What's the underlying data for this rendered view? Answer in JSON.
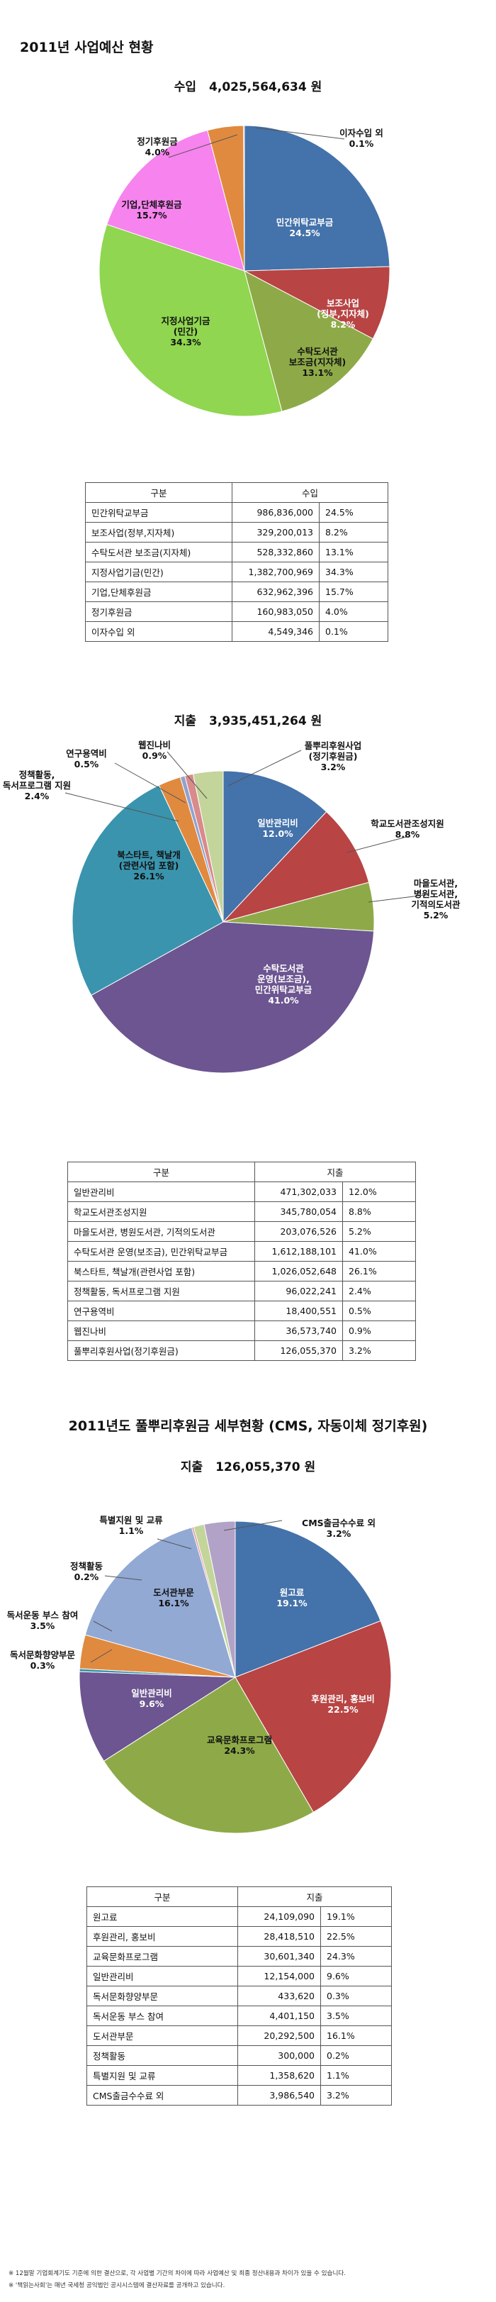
{
  "page_title": "2011년 사업예산 현황",
  "section3_title": "2011년도 풀뿌리후원금 세부현황 (CMS, 자동이체 정기후원)",
  "table_headers": {
    "category": "구분"
  },
  "chart_data": [
    {
      "type": "pie",
      "title_label": "수입",
      "total": "4,025,564,634 원",
      "value_header": "수입",
      "slices": [
        {
          "label": "민간위탁교부금",
          "value": "986,836,000",
          "percent": 24.5,
          "pct_text": "24.5%",
          "color": "#4472aa"
        },
        {
          "label": "보조사업(정부,지자체)",
          "value": "329,200,013",
          "percent": 8.2,
          "pct_text": "8.2%",
          "color": "#b84444"
        },
        {
          "label": "수탁도서관 보조금(지자체)",
          "value": "528,332,860",
          "percent": 13.1,
          "pct_text": "13.1%",
          "color": "#8eaa48"
        },
        {
          "label": "지정사업기금(민간)",
          "value": "1,382,700,969",
          "percent": 34.3,
          "pct_text": "34.3%",
          "color": "#90d650"
        },
        {
          "label": "기업,단체후원금",
          "value": "632,962,396",
          "percent": 15.7,
          "pct_text": "15.7%",
          "color": "#f683ee"
        },
        {
          "label": "정기후원금",
          "value": "160,983,050",
          "percent": 4.0,
          "pct_text": "4.0%",
          "color": "#e08a40"
        },
        {
          "label": "이자수입 외",
          "value": "4,549,346",
          "percent": 0.1,
          "pct_text": "0.1%",
          "color": "#8064a2"
        }
      ],
      "chart_labels": [
        {
          "lines": [
            "민간위탁교부금",
            "24.5%"
          ],
          "color": "#ffffff"
        },
        {
          "lines": [
            "보조사업",
            "(정부,지자체)",
            "8.2%"
          ],
          "color": "#ffffff"
        },
        {
          "lines": [
            "수탁도서관",
            "보조금(지자체)",
            "13.1%"
          ],
          "color": "#111111"
        },
        {
          "lines": [
            "지정사업기금",
            "(민간)",
            "34.3%"
          ],
          "color": "#111111"
        },
        {
          "lines": [
            "기업,단체후원금",
            "15.7%"
          ],
          "color": "#111111"
        },
        {
          "lines": [
            "정기후원금",
            "4.0%"
          ],
          "color": "#111111"
        },
        {
          "lines": [
            "이자수입 외",
            "0.1%"
          ],
          "color": "#111111"
        }
      ]
    },
    {
      "type": "pie",
      "title_label": "지출",
      "total": "3,935,451,264 원",
      "value_header": "지출",
      "slices": [
        {
          "label": "일반관리비",
          "value": "471,302,033",
          "percent": 12.0,
          "pct_text": "12.0%",
          "color": "#4472aa"
        },
        {
          "label": "학교도서관조성지원",
          "value": "345,780,054",
          "percent": 8.8,
          "pct_text": "8.8%",
          "color": "#b84444"
        },
        {
          "label": "마을도서관, 병원도서관, 기적의도서관",
          "value": "203,076,526",
          "percent": 5.2,
          "pct_text": "5.2%",
          "color": "#8eaa48"
        },
        {
          "label": "수탁도서관 운영(보조금), 민간위탁교부금",
          "value": "1,612,188,101",
          "percent": 41.0,
          "pct_text": "41.0%",
          "color": "#6c5590"
        },
        {
          "label": "북스타트, 책날개(관련사업 포함)",
          "value": "1,026,052,648",
          "percent": 26.1,
          "pct_text": "26.1%",
          "color": "#3a94ad"
        },
        {
          "label": "정책활동, 독서프로그램 지원",
          "value": "96,022,241",
          "percent": 2.4,
          "pct_text": "2.4%",
          "color": "#e08a40"
        },
        {
          "label": "연구용역비",
          "value": "18,400,551",
          "percent": 0.5,
          "pct_text": "0.5%",
          "color": "#8fa3d0"
        },
        {
          "label": "웹진나비",
          "value": "36,573,740",
          "percent": 0.9,
          "pct_text": "0.9%",
          "color": "#d98a8a"
        },
        {
          "label": "풀뿌리후원사업(정기후원금)",
          "value": "126,055,370",
          "percent": 3.2,
          "pct_text": "3.2%",
          "color": "#c3d59a"
        }
      ],
      "chart_labels": [
        {
          "lines": [
            "일반관리비",
            "12.0%"
          ],
          "color": "#ffffff"
        },
        {
          "lines": [
            "학교도서관조성지원",
            "8.8%"
          ],
          "color": "#111111"
        },
        {
          "lines": [
            "마을도서관,",
            "병원도서관,",
            "기적의도서관",
            "5.2%"
          ],
          "color": "#111111"
        },
        {
          "lines": [
            "수탁도서관",
            "운영(보조금),",
            "민간위탁교부금",
            "41.0%"
          ],
          "color": "#ffffff"
        },
        {
          "lines": [
            "북스타트, 책날개",
            "(관련사업 포함)",
            "26.1%"
          ],
          "color": "#111111"
        },
        {
          "lines": [
            "정책활동,",
            "독서프로그램 지원",
            "2.4%"
          ],
          "color": "#111111"
        },
        {
          "lines": [
            "연구용역비",
            "0.5%"
          ],
          "color": "#111111"
        },
        {
          "lines": [
            "웹진나비",
            "0.9%"
          ],
          "color": "#111111"
        },
        {
          "lines": [
            "풀뿌리후원사업",
            "(정기후원금)",
            "3.2%"
          ],
          "color": "#111111"
        }
      ]
    },
    {
      "type": "pie",
      "title_label": "지출",
      "total": "126,055,370 원",
      "value_header": "지출",
      "slices": [
        {
          "label": "원고료",
          "value": "24,109,090",
          "percent": 19.1,
          "pct_text": "19.1%",
          "color": "#4472aa"
        },
        {
          "label": "후원관리, 홍보비",
          "value": "28,418,510",
          "percent": 22.5,
          "pct_text": "22.5%",
          "color": "#b84444"
        },
        {
          "label": "교육문화프로그램",
          "value": "30,601,340",
          "percent": 24.3,
          "pct_text": "24.3%",
          "color": "#8eaa48"
        },
        {
          "label": "일반관리비",
          "value": "12,154,000",
          "percent": 9.6,
          "pct_text": "9.6%",
          "color": "#6c5590"
        },
        {
          "label": "독서문화향양부문",
          "value": "433,620",
          "percent": 0.3,
          "pct_text": "0.3%",
          "color": "#3a94ad"
        },
        {
          "label": "독서운동 부스 참여",
          "value": "4,401,150",
          "percent": 3.5,
          "pct_text": "3.5%",
          "color": "#e08a40"
        },
        {
          "label": "도서관부문",
          "value": "20,292,500",
          "percent": 16.1,
          "pct_text": "16.1%",
          "color": "#92a9d4"
        },
        {
          "label": "정책활동",
          "value": "300,000",
          "percent": 0.2,
          "pct_text": "0.2%",
          "color": "#e09898"
        },
        {
          "label": "특별지원 및 교류",
          "value": "1,358,620",
          "percent": 1.1,
          "pct_text": "1.1%",
          "color": "#c3d59a"
        },
        {
          "label": "CMS출금수수료 외",
          "value": "3,986,540",
          "percent": 3.2,
          "pct_text": "3.2%",
          "color": "#b3a2c7"
        }
      ],
      "chart_labels": [
        {
          "lines": [
            "원고료",
            "19.1%"
          ],
          "color": "#ffffff"
        },
        {
          "lines": [
            "후원관리, 홍보비",
            "22.5%"
          ],
          "color": "#ffffff"
        },
        {
          "lines": [
            "교육문화프로그램",
            "24.3%"
          ],
          "color": "#111111"
        },
        {
          "lines": [
            "일반관리비",
            "9.6%"
          ],
          "color": "#ffffff"
        },
        {
          "lines": [
            "독서문화향양부문",
            "0.3%"
          ],
          "color": "#111111"
        },
        {
          "lines": [
            "독서운동 부스 참여",
            "3.5%"
          ],
          "color": "#111111"
        },
        {
          "lines": [
            "도서관부문",
            "16.1%"
          ],
          "color": "#111111"
        },
        {
          "lines": [
            "정책활동",
            "0.2%"
          ],
          "color": "#111111"
        },
        {
          "lines": [
            "특별지원 및 교류",
            "1.1%"
          ],
          "color": "#111111"
        },
        {
          "lines": [
            "CMS출금수수료 외",
            "3.2%"
          ],
          "color": "#111111"
        }
      ]
    }
  ],
  "notes": [
    "※ 12월말 기업회계기도 기준에 의한 결산으로, 각 사업별 기간의 차이에 따라 사업예산 및 최종 정산내용과 차이가 있을 수 있습니다.",
    "※ '책읽는사회'는 매년 국세청 공익법인 공시시스템에 결산자료를 공개하고 있습니다."
  ]
}
